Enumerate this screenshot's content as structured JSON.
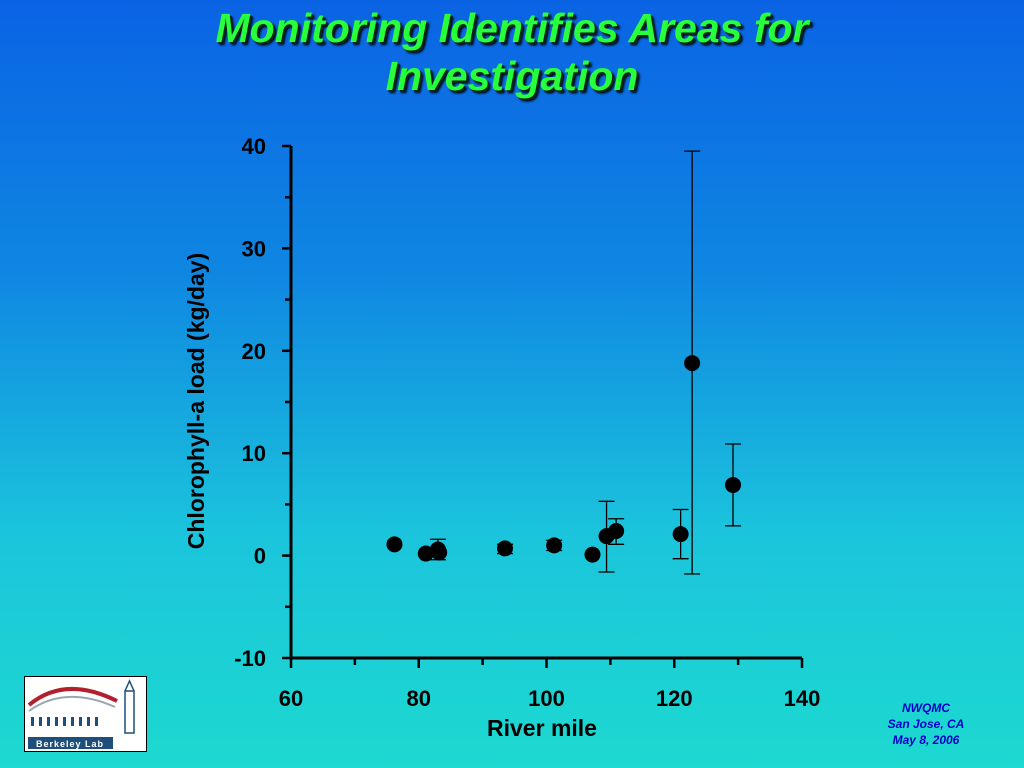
{
  "slide": {
    "title_line1": "Monitoring Identifies Areas for",
    "title_line2": "Investigation"
  },
  "logo": {
    "text": "Berkeley Lab"
  },
  "footer": {
    "line1": "NWQMC",
    "line2": "San Jose, CA",
    "line3": "May 8, 2006"
  },
  "chart_data": {
    "type": "scatter",
    "title": "",
    "xlabel": "River mile",
    "ylabel": "Chlorophyll-a load (kg/day)",
    "xlim": [
      60,
      140
    ],
    "ylim": [
      -10,
      40
    ],
    "xticks": [
      60,
      80,
      100,
      120,
      140
    ],
    "yticks": [
      -10,
      0,
      10,
      20,
      30,
      40
    ],
    "grid": false,
    "legend": "none",
    "marker_color": "#000000",
    "points": [
      {
        "x": 76.2,
        "y": 1.1
      },
      {
        "x": 81.1,
        "y": 0.2
      },
      {
        "x": 83.0,
        "y": 0.6,
        "err_low": -0.4,
        "err_high": 1.6
      },
      {
        "x": 83.2,
        "y": 0.3
      },
      {
        "x": 93.5,
        "y": 0.7,
        "err_low": 0.2,
        "err_high": 1.1
      },
      {
        "x": 101.2,
        "y": 1.0,
        "err_low": 0.5,
        "err_high": 1.5
      },
      {
        "x": 107.2,
        "y": 0.1
      },
      {
        "x": 109.4,
        "y": 1.9,
        "err_low": -1.6,
        "err_high": 5.3
      },
      {
        "x": 110.9,
        "y": 2.4,
        "err_low": 1.1,
        "err_high": 3.6
      },
      {
        "x": 121.0,
        "y": 2.1,
        "err_low": -0.3,
        "err_high": 4.5
      },
      {
        "x": 122.8,
        "y": 18.8,
        "err_low": -1.8,
        "err_high": 39.5
      },
      {
        "x": 129.2,
        "y": 6.9,
        "err_low": 2.9,
        "err_high": 10.9
      }
    ]
  }
}
